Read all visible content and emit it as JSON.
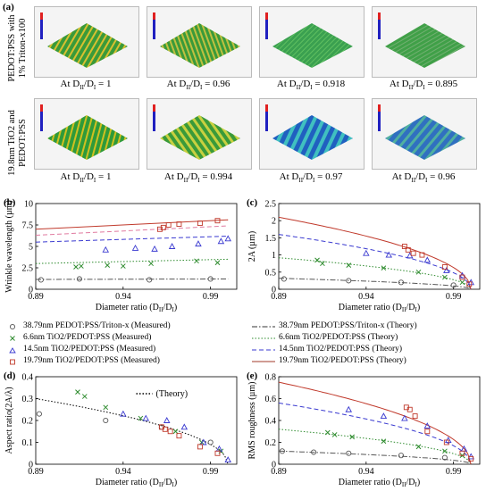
{
  "panel_a": {
    "label": "(a)",
    "row1_label": [
      "PEDOT:PSS with",
      "1% Triton-x100"
    ],
    "row2_label": [
      "19.8nm TiO2 and",
      "PEDOT:PSS"
    ],
    "row1_captions": [
      "At D",
      "At D",
      "At D",
      "At D"
    ],
    "row1_values": [
      "1",
      "0.96",
      "0.918",
      "0.895"
    ],
    "row2_values": [
      "1",
      "0.994",
      "0.97",
      "0.96"
    ],
    "tile_axis_x": "40, 0",
    "tile_axis_y": "60, 0",
    "tile_axis_z": "0, 0µm"
  },
  "legend_left": [
    {
      "label": "38.79nm PEDOT:PSS/Triton-x (Measured)",
      "marker": "circle",
      "color": "#555555"
    },
    {
      "label": "6.6nm TiO2/PEDOT:PSS (Measured)",
      "marker": "x",
      "color": "#2e8b2e"
    },
    {
      "label": "14.5nm TiO2/PEDOT:PSS (Measured)",
      "marker": "triangle",
      "color": "#3a3ad0"
    },
    {
      "label": "19.79nm TiO2/PEDOT:PSS (Measured)",
      "marker": "square",
      "color": "#c0392b"
    }
  ],
  "legend_right": [
    {
      "label": "38.79nm PEDOT:PSS/Triton-x (Theory)",
      "style": "dashdot",
      "color": "#333333"
    },
    {
      "label": "6.6nm TiO2/PEDOT:PSS (Theory)",
      "style": "dotted",
      "color": "#2e8b2e"
    },
    {
      "label": "14.5nm TiO2/PEDOT:PSS (Theory)",
      "style": "dashed",
      "color": "#3a3ad0"
    },
    {
      "label": "19.79nm TiO2/PEDOT:PSS (Theory)",
      "style": "solid",
      "color": "#a33a2a"
    }
  ],
  "colors": {
    "black": "#333333",
    "green": "#2e8b2e",
    "blue": "#3a3ad0",
    "red": "#c0392b",
    "pink": "#e07aa0"
  },
  "chart_data": [
    {
      "id": "b",
      "panel_label": "(b)",
      "type": "scatter",
      "xlabel": "Diameter ratio (D",
      "ylabel": "Wrinkle wavelength (µm)",
      "xlim": [
        0.89,
        1.005
      ],
      "ylim": [
        0,
        10
      ],
      "xticks": [
        0.89,
        0.94,
        0.99
      ],
      "yticks": [
        0,
        2.5,
        5,
        7.5,
        10
      ],
      "series": [
        {
          "marker": "circle",
          "color": "#555555",
          "x": [
            0.893,
            0.915,
            0.955,
            0.99
          ],
          "y": [
            1.1,
            1.2,
            1.1,
            1.2
          ],
          "theory": {
            "style": "dashdot",
            "x": [
              0.89,
              1.0
            ],
            "y": [
              1.15,
              1.2
            ]
          }
        },
        {
          "marker": "x",
          "color": "#2e8b2e",
          "x": [
            0.913,
            0.916,
            0.931,
            0.94,
            0.956,
            0.982,
            0.994
          ],
          "y": [
            2.6,
            2.7,
            2.8,
            2.7,
            3.0,
            3.3,
            3.1
          ],
          "theory": {
            "style": "dotted",
            "x": [
              0.89,
              1.0
            ],
            "y": [
              3.0,
              3.5
            ]
          }
        },
        {
          "marker": "triangle",
          "color": "#3a3ad0",
          "x": [
            0.93,
            0.947,
            0.958,
            0.968,
            0.983,
            0.996,
            1.0
          ],
          "y": [
            4.6,
            4.8,
            4.7,
            5.0,
            5.3,
            5.6,
            5.9
          ],
          "theory": {
            "style": "dashed",
            "x": [
              0.89,
              1.0
            ],
            "y": [
              5.5,
              6.2
            ]
          }
        },
        {
          "marker": "square",
          "color": "#c0392b",
          "x": [
            0.961,
            0.963,
            0.966,
            0.972,
            0.984,
            0.994
          ],
          "y": [
            7.0,
            7.2,
            7.5,
            7.6,
            7.7,
            8.0
          ],
          "theory": {
            "style": "solid",
            "x": [
              0.89,
              1.0
            ],
            "y": [
              7.0,
              8.1
            ]
          }
        },
        {
          "marker": "none",
          "color": "#e07aa0",
          "theory": {
            "style": "dashed",
            "x": [
              0.89,
              1.0
            ],
            "y": [
              6.3,
              7.4
            ]
          }
        }
      ]
    },
    {
      "id": "c",
      "panel_label": "(c)",
      "type": "scatter",
      "xlabel": "Diameter ratio (D",
      "ylabel": "2A (µm)",
      "xlim": [
        0.89,
        1.005
      ],
      "ylim": [
        0,
        2.5
      ],
      "xticks": [
        0.89,
        0.94,
        0.99
      ],
      "yticks": [
        0,
        0.5,
        1,
        1.5,
        2,
        2.5
      ],
      "series": [
        {
          "marker": "circle",
          "color": "#555555",
          "x": [
            0.893,
            0.93,
            0.96,
            0.99
          ],
          "y": [
            0.3,
            0.25,
            0.2,
            0.12
          ],
          "theory": {
            "style": "dashdot",
            "a": 0.32
          }
        },
        {
          "marker": "x",
          "color": "#2e8b2e",
          "x": [
            0.912,
            0.915,
            0.93,
            0.95,
            0.97,
            0.985,
            0.995
          ],
          "y": [
            0.85,
            0.75,
            0.7,
            0.62,
            0.5,
            0.35,
            0.2
          ],
          "theory": {
            "style": "dotted",
            "a": 0.92
          }
        },
        {
          "marker": "triangle",
          "color": "#3a3ad0",
          "x": [
            0.94,
            0.953,
            0.965,
            0.975,
            0.986,
            0.995,
            1.0
          ],
          "y": [
            1.05,
            1.0,
            0.98,
            0.85,
            0.55,
            0.4,
            0.2
          ],
          "theory": {
            "style": "dashed",
            "a": 1.6
          }
        },
        {
          "marker": "square",
          "color": "#c0392b",
          "x": [
            0.962,
            0.964,
            0.967,
            0.972,
            0.985,
            0.995,
            0.999
          ],
          "y": [
            1.25,
            1.15,
            1.05,
            1.0,
            0.65,
            0.35,
            0.15
          ],
          "theory": {
            "style": "solid",
            "a": 2.1
          }
        }
      ]
    },
    {
      "id": "d",
      "panel_label": "(d)",
      "type": "scatter",
      "xlabel": "Diameter ratio (D",
      "ylabel": "Aspect ratio(2A/λ)",
      "legend_label": "(Theory)",
      "xlim": [
        0.89,
        1.005
      ],
      "ylim": [
        0,
        0.4
      ],
      "xticks": [
        0.89,
        0.94,
        0.99
      ],
      "yticks": [
        0,
        0.1,
        0.2,
        0.3,
        0.4
      ],
      "series": [
        {
          "marker": "circle",
          "color": "#555555",
          "x": [
            0.892,
            0.93,
            0.962,
            0.99
          ],
          "y": [
            0.23,
            0.2,
            0.17,
            0.1
          ]
        },
        {
          "marker": "x",
          "color": "#2e8b2e",
          "x": [
            0.914,
            0.918,
            0.93,
            0.95,
            0.97,
            0.985,
            0.996
          ],
          "y": [
            0.33,
            0.31,
            0.26,
            0.21,
            0.15,
            0.1,
            0.06
          ]
        },
        {
          "marker": "triangle",
          "color": "#3a3ad0",
          "x": [
            0.94,
            0.953,
            0.965,
            0.975,
            0.986,
            0.995,
            1.0
          ],
          "y": [
            0.23,
            0.21,
            0.2,
            0.17,
            0.1,
            0.07,
            0.02
          ]
        },
        {
          "marker": "square",
          "color": "#c0392b",
          "x": [
            0.962,
            0.964,
            0.967,
            0.972,
            0.984,
            0.994
          ],
          "y": [
            0.17,
            0.16,
            0.15,
            0.13,
            0.08,
            0.05
          ]
        },
        {
          "marker": "none",
          "color": "#000000",
          "theory": {
            "style": "dotted",
            "a": 0.3
          }
        }
      ]
    },
    {
      "id": "e",
      "panel_label": "(e)",
      "type": "scatter",
      "xlabel": "Diameter ratio (D",
      "ylabel": "RMS roughness (µm)",
      "xlim": [
        0.89,
        1.005
      ],
      "ylim": [
        0,
        0.8
      ],
      "xticks": [
        0.89,
        0.94,
        0.99
      ],
      "yticks": [
        0,
        0.2,
        0.4,
        0.6,
        0.8
      ],
      "series": [
        {
          "marker": "circle",
          "color": "#555555",
          "x": [
            0.892,
            0.91,
            0.93,
            0.96,
            0.985
          ],
          "y": [
            0.12,
            0.11,
            0.1,
            0.08,
            0.06
          ],
          "theory": {
            "style": "dashdot",
            "a": 0.12
          }
        },
        {
          "marker": "x",
          "color": "#2e8b2e",
          "x": [
            0.918,
            0.922,
            0.932,
            0.95,
            0.97,
            0.985,
            0.995
          ],
          "y": [
            0.29,
            0.27,
            0.25,
            0.21,
            0.16,
            0.12,
            0.08
          ],
          "theory": {
            "style": "dotted",
            "a": 0.32
          }
        },
        {
          "marker": "triangle",
          "color": "#3a3ad0",
          "x": [
            0.93,
            0.95,
            0.962,
            0.975,
            0.987,
            0.996,
            1.0
          ],
          "y": [
            0.5,
            0.44,
            0.42,
            0.35,
            0.22,
            0.14,
            0.07
          ],
          "theory": {
            "style": "dashed",
            "a": 0.56
          }
        },
        {
          "marker": "square",
          "color": "#c0392b",
          "x": [
            0.963,
            0.965,
            0.968,
            0.975,
            0.986,
            0.995,
            1.0
          ],
          "y": [
            0.52,
            0.5,
            0.44,
            0.3,
            0.2,
            0.1,
            0.05
          ],
          "theory": {
            "style": "solid",
            "a": 0.75
          }
        }
      ]
    }
  ]
}
